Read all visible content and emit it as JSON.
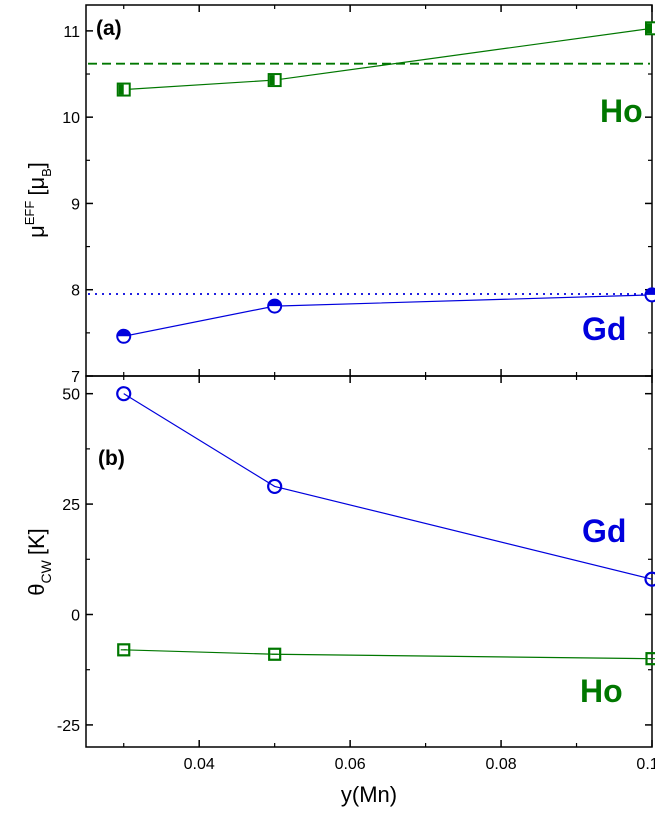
{
  "chart_data": [
    {
      "type": "line",
      "panel_label": "(a)",
      "ylabel": {
        "base": "μ",
        "sup": "EFF",
        "bracket_open": "[μ",
        "sub": "B",
        "bracket_close": "]"
      },
      "xlim": [
        0.025,
        0.1
      ],
      "ylim": [
        7,
        11.3
      ],
      "yticks": [
        7,
        8,
        9,
        10,
        11
      ],
      "x": [
        0.03,
        0.05,
        0.1
      ],
      "series": [
        {
          "name": "Ho",
          "color": "#007700",
          "marker": "half-filled-square",
          "values": [
            10.32,
            10.43,
            11.03
          ],
          "reference_line": {
            "value": 10.62,
            "style": "dashed"
          }
        },
        {
          "name": "Gd",
          "color": "#0000dd",
          "marker": "half-filled-circle",
          "values": [
            7.46,
            7.81,
            7.94
          ],
          "reference_line": {
            "value": 7.95,
            "style": "dotted"
          }
        }
      ]
    },
    {
      "type": "line",
      "panel_label": "(b)",
      "ylabel": {
        "base": "θ",
        "sub": "CW",
        "unit": "[K]"
      },
      "xlabel": "y(Mn)",
      "xlim": [
        0.025,
        0.1
      ],
      "xticks": [
        "0.04",
        "0.06",
        "0.08",
        "0.10"
      ],
      "ylim": [
        -30,
        54
      ],
      "yticks": [
        -25,
        0,
        25,
        50
      ],
      "x": [
        0.03,
        0.05,
        0.1
      ],
      "series": [
        {
          "name": "Gd",
          "color": "#0000dd",
          "marker": "open-circle",
          "values": [
            50,
            29,
            8
          ]
        },
        {
          "name": "Ho",
          "color": "#007700",
          "marker": "open-square",
          "values": [
            -8,
            -9,
            -10
          ]
        }
      ]
    }
  ]
}
